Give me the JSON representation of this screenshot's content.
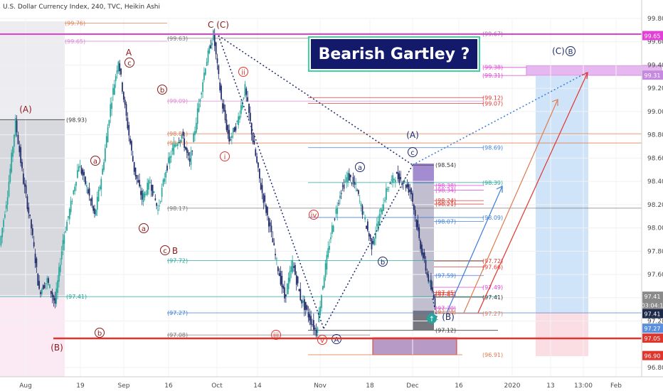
{
  "header": "U.S. Dollar Currency Index, 240, TVC, Heikin Ashi",
  "chart_data": {
    "type": "candlestick",
    "title": "Bearish Gartley ?",
    "ylim": [
      96.75,
      100.1
    ],
    "y_ticks": [
      {
        "label": "99.80",
        "value": 99.8
      },
      {
        "label": "99.60",
        "value": 99.6
      },
      {
        "label": "99.40",
        "value": 99.4
      },
      {
        "label": "99.20",
        "value": 99.2
      },
      {
        "label": "99.00",
        "value": 99.0
      },
      {
        "label": "98.80",
        "value": 98.8
      },
      {
        "label": "98.60",
        "value": 98.6
      },
      {
        "label": "98.40",
        "value": 98.4
      },
      {
        "label": "98.20",
        "value": 98.2
      },
      {
        "label": "98.00",
        "value": 98.0
      },
      {
        "label": "97.80",
        "value": 97.8
      },
      {
        "label": "97.60",
        "value": 97.6
      },
      {
        "label": "97.40",
        "value": 97.4
      },
      {
        "label": "97.20",
        "value": 97.2
      },
      {
        "label": "96.80",
        "value": 96.8
      }
    ],
    "x_ticks": [
      "Aug",
      "19",
      "Sep",
      "16",
      "Oct",
      "14",
      "Nov",
      "18",
      "Dec",
      "16",
      "2020",
      "13",
      "13:00",
      "Feb"
    ],
    "price_tags": [
      {
        "label": "99.65",
        "value": 99.65,
        "color": "#e23fd7"
      },
      {
        "label": "99.31",
        "value": 99.31,
        "color": "#c58ae0"
      },
      {
        "label": "97.41",
        "value": 97.41,
        "color": "#8a8a8a"
      },
      {
        "label": "03:04:1",
        "value": 97.335,
        "color": "#8a8a8a"
      },
      {
        "label": "97.41",
        "value": 97.26,
        "color": "#1e2a4a"
      },
      {
        "label": "97.27",
        "value": 97.135,
        "color": "#5a8fe0"
      },
      {
        "label": "97.05",
        "value": 97.05,
        "color": "#e0352d"
      },
      {
        "label": "96.90",
        "value": 96.9,
        "color": "#e0352d"
      }
    ],
    "series": [
      {
        "name": "DXY",
        "ohlc_path": [
          [
            97.8,
            97.9
          ],
          [
            98.2,
            98.4
          ],
          [
            98.9,
            98.93
          ],
          [
            98.3,
            98.5
          ],
          [
            97.9,
            98.1
          ],
          [
            97.3,
            97.6
          ],
          [
            97.5,
            97.6
          ],
          [
            97.2,
            97.5
          ],
          [
            97.8,
            98.0
          ],
          [
            98.1,
            98.3
          ],
          [
            98.5,
            98.6
          ],
          [
            98.2,
            98.5
          ],
          [
            97.9,
            98.3
          ],
          [
            98.4,
            98.6
          ],
          [
            99.0,
            99.1
          ],
          [
            99.4,
            99.5
          ],
          [
            98.9,
            99.0
          ],
          [
            98.4,
            98.6
          ],
          [
            98.1,
            98.4
          ],
          [
            98.3,
            98.5
          ],
          [
            98.0,
            98.3
          ],
          [
            98.4,
            98.6
          ],
          [
            98.6,
            98.8
          ],
          [
            98.7,
            98.9
          ],
          [
            98.4,
            98.7
          ],
          [
            98.9,
            99.1
          ],
          [
            99.3,
            99.5
          ],
          [
            99.7,
            99.63
          ],
          [
            99.0,
            99.2
          ],
          [
            98.6,
            98.9
          ],
          [
            98.8,
            99.0
          ],
          [
            99.1,
            99.3
          ],
          [
            98.6,
            98.9
          ],
          [
            98.2,
            98.5
          ],
          [
            97.9,
            98.2
          ],
          [
            97.6,
            97.8
          ],
          [
            97.3,
            97.5
          ],
          [
            97.6,
            97.8
          ],
          [
            97.3,
            97.5
          ],
          [
            97.2,
            97.3
          ],
          [
            97.0,
            97.2
          ],
          [
            97.5,
            97.7
          ],
          [
            97.9,
            98.1
          ],
          [
            98.2,
            98.4
          ],
          [
            98.4,
            98.5
          ],
          [
            98.3,
            98.4
          ],
          [
            98.0,
            98.2
          ],
          [
            97.8,
            97.9
          ],
          [
            98.0,
            98.2
          ],
          [
            98.3,
            98.4
          ],
          [
            98.4,
            98.5
          ],
          [
            98.3,
            98.5
          ],
          [
            98.2,
            98.4
          ],
          [
            97.8,
            98.0
          ],
          [
            97.5,
            97.7
          ],
          [
            97.3,
            97.4
          ]
        ]
      }
    ],
    "levels": [
      {
        "label": "(99.76)",
        "value": 99.76,
        "color": "#e07a50"
      },
      {
        "label": "(99.65)",
        "value": 99.605,
        "color": "#e084d8"
      },
      {
        "label": "(99.63)",
        "value": 99.63,
        "color": "#777"
      },
      {
        "label": "(99.67)",
        "value": 99.67,
        "color": "#777"
      },
      {
        "label": "(99.38)",
        "value": 99.38,
        "color": "#e23fd7"
      },
      {
        "label": "(99.31)",
        "value": 99.31,
        "color": "#e23fd7"
      },
      {
        "label": "(99.12)",
        "value": 99.12,
        "color": "#e0352d"
      },
      {
        "label": "(99.09)",
        "value": 99.09,
        "color": "#e084d8"
      },
      {
        "label": "(99.07)",
        "value": 99.07,
        "color": "#e0352d"
      },
      {
        "label": "(98.93)",
        "value": 98.93,
        "color": "#333"
      },
      {
        "label": "(98.81)",
        "value": 98.81,
        "color": "#e07a50"
      },
      {
        "label": "(98.73)",
        "value": 98.73,
        "color": "#e07a50"
      },
      {
        "label": "(98.69)",
        "value": 98.69,
        "color": "#3b7dd8"
      },
      {
        "label": "(98.54)",
        "value": 98.54,
        "color": "#333"
      },
      {
        "label": "(98.39)",
        "value": 98.39,
        "color": "#26a69a"
      },
      {
        "label": "(98.38)",
        "value": 98.365,
        "color": "#e23fd7"
      },
      {
        "label": "(98.34)",
        "value": 98.325,
        "color": "#e23fd7"
      },
      {
        "label": "(98.24)",
        "value": 98.235,
        "color": "#e0352d"
      },
      {
        "label": "(98.21)",
        "value": 98.205,
        "color": "#e0352d"
      },
      {
        "label": "(98.17)",
        "value": 98.17,
        "color": "#777"
      },
      {
        "label": "(98.09)",
        "value": 98.09,
        "color": "#3b7dd8"
      },
      {
        "label": "(98.07)",
        "value": 98.055,
        "color": "#3b7dd8"
      },
      {
        "label": "(97.72)",
        "value": 97.72,
        "color": "#26a69a"
      },
      {
        "label": "(97.72)",
        "value": 97.715,
        "color": "#e0352d"
      },
      {
        "label": "(97.66)",
        "value": 97.665,
        "color": "#e0352d"
      },
      {
        "label": "(97.59)",
        "value": 97.59,
        "color": "#3b7dd8"
      },
      {
        "label": "(97.49)",
        "value": 97.49,
        "color": "#e23fd7"
      },
      {
        "label": "(97.41)",
        "value": 97.41,
        "color": "#26a69a"
      },
      {
        "label": "(97.41)",
        "value": 97.405,
        "color": "#333"
      },
      {
        "label": "(97.45)",
        "value": 97.445,
        "color": "#e0352d"
      },
      {
        "label": "(97.43)",
        "value": 97.425,
        "color": "#e0352d"
      },
      {
        "label": "(97.30)",
        "value": 97.31,
        "color": "#e23fd7"
      },
      {
        "label": "(97.27)",
        "value": 97.27,
        "color": "#3b7dd8"
      },
      {
        "label": "(97.28)",
        "value": 97.28,
        "color": "#e07a50"
      },
      {
        "label": "(97.27)",
        "value": 97.265,
        "color": "#e07a50"
      },
      {
        "label": "(97.12)",
        "value": 97.12,
        "color": "#333"
      },
      {
        "label": "(97.08)",
        "value": 97.08,
        "color": "#777"
      },
      {
        "label": "(96.91)",
        "value": 96.91,
        "color": "#e07a50"
      }
    ],
    "wave_labels": [
      {
        "text": "(A)",
        "color": "#8b1a1a"
      },
      {
        "text": "(B)",
        "color": "#8b1a1a"
      },
      {
        "text": "A",
        "color": "#8b1a1a"
      },
      {
        "text": "c",
        "color": "#8b1a1a"
      },
      {
        "text": "b",
        "color": "#8b1a1a"
      },
      {
        "text": "a",
        "color": "#8b1a1a"
      },
      {
        "text": "b",
        "color": "#8b1a1a"
      },
      {
        "text": "a",
        "color": "#8b1a1a"
      },
      {
        "text": "c",
        "color": "#8b1a1a"
      },
      {
        "text": "B",
        "color": "#8b1a1a"
      },
      {
        "text": "C (C)",
        "color": "#8b1a1a"
      },
      {
        "text": "ii",
        "color": "#e0352d"
      },
      {
        "text": "i",
        "color": "#e0352d"
      },
      {
        "text": "iv",
        "color": "#e0352d"
      },
      {
        "text": "iii",
        "color": "#e0352d"
      },
      {
        "text": "v",
        "color": "#e0352d"
      },
      {
        "text": "A",
        "color": "#1e2a6a"
      },
      {
        "text": "a",
        "color": "#1e2a6a"
      },
      {
        "text": "b",
        "color": "#1e2a6a"
      },
      {
        "text": "(A)",
        "color": "#1e2a6a"
      },
      {
        "text": "c",
        "color": "#1e2a6a"
      },
      {
        "text": "(B)",
        "color": "#1e2a6a"
      },
      {
        "text": "(C)",
        "color": "#1e2a6a"
      },
      {
        "text": "B",
        "color": "#1e2a6a"
      }
    ]
  }
}
